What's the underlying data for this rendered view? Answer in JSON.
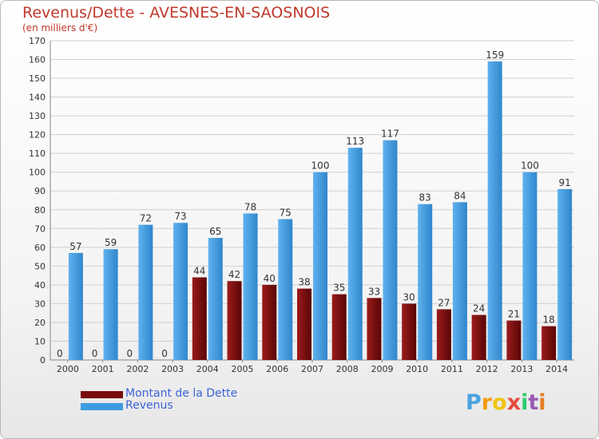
{
  "chart_data": {
    "type": "bar",
    "title": "Revenus/Dette - AVESNES-EN-SAOSNOIS",
    "subtitle": "(en milliers d'€)",
    "categories": [
      "2000",
      "2001",
      "2002",
      "2003",
      "2004",
      "2005",
      "2006",
      "2007",
      "2008",
      "2009",
      "2010",
      "2011",
      "2012",
      "2013",
      "2014"
    ],
    "series": [
      {
        "name": "Montant de la Dette",
        "color": "#7a0c0c",
        "values": [
          0,
          0,
          0,
          0,
          44,
          42,
          40,
          38,
          35,
          33,
          30,
          27,
          24,
          21,
          18
        ]
      },
      {
        "name": "Revenus",
        "color": "#3d9be0",
        "values": [
          57,
          59,
          72,
          73,
          65,
          78,
          75,
          100,
          113,
          117,
          83,
          84,
          159,
          100,
          91
        ]
      }
    ],
    "ylim": [
      0,
      170
    ],
    "yticks": [
      0,
      10,
      20,
      30,
      40,
      50,
      60,
      70,
      80,
      90,
      100,
      110,
      120,
      130,
      140,
      150,
      160,
      170
    ],
    "grid": true,
    "legend_position": "bottom-left"
  },
  "logo": {
    "text": "Proxiti",
    "letters": [
      "P",
      "r",
      "o",
      "x",
      "i",
      "t",
      "i"
    ],
    "colors": [
      "#4aa3df",
      "#f39c12",
      "#f1c40f",
      "#e74c3c",
      "#2ecc71",
      "#9b59b6",
      "#e67e22"
    ]
  }
}
